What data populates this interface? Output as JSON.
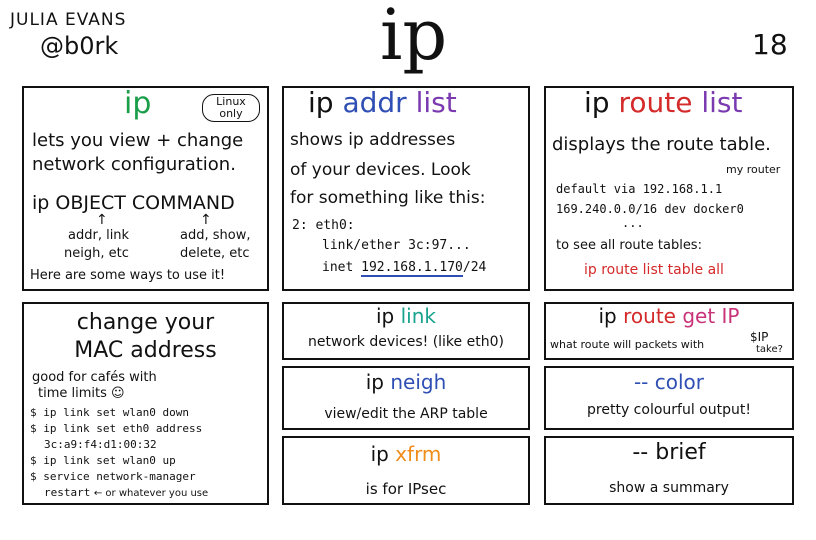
{
  "header": {
    "author_name": "JULIA EVANS",
    "author_handle": "@b0rk",
    "title": "ip",
    "page_number": "18"
  },
  "panels": {
    "ip": {
      "title": "ip",
      "badge": "Linux only",
      "desc1": "lets you view + change",
      "desc2": "network configuration.",
      "syntax": "ip OBJECT COMMAND",
      "obj_examples1": "addr, link",
      "obj_examples2": "neigh, etc",
      "cmd_examples1": "add, show,",
      "cmd_examples2": "delete, etc",
      "footer": "Here are some ways to use it!"
    },
    "addr": {
      "title_ip": "ip",
      "title_obj": "addr",
      "title_cmd": "list",
      "desc1": "shows ip addresses",
      "desc2": "of your devices. Look",
      "desc3": "for something like this:",
      "code1": "2: eth0:",
      "code2": "link/ether 3c:97...",
      "code3_prefix": "inet ",
      "code3_ip": "192.168.1.170",
      "code3_suffix": "/24"
    },
    "route": {
      "title_ip": "ip",
      "title_obj": "route",
      "title_cmd": "list",
      "desc": "displays the route table.",
      "annotation": "my router",
      "code1": "default via 192.168.1.1",
      "code2": "169.240.0.0/16 dev docker0",
      "ellipsis": "...",
      "note": "to see all route tables:",
      "command": "ip route list table all"
    },
    "mac": {
      "title1": "change your",
      "title2": "MAC address",
      "desc1": "good for cafés with",
      "desc2": "time limits",
      "cmd1": "$ ip link set wlan0 down",
      "cmd2": "$ ip link set eth0 address",
      "cmd3": "3c:a9:f4:d1:00:32",
      "cmd4": "$ ip link set wlan0 up",
      "cmd5": "$ service network-manager",
      "cmd6": "restart",
      "cmd6_note": "← or whatever you use"
    },
    "link": {
      "title_ip": "ip",
      "title_obj": "link",
      "desc": "network devices! (like eth0)"
    },
    "neigh": {
      "title_ip": "ip",
      "title_obj": "neigh",
      "desc": "view/edit the ARP table"
    },
    "xfrm": {
      "title_ip": "ip",
      "title_obj": "xfrm",
      "desc": "is for IPsec"
    },
    "routeget": {
      "title_ip": "ip",
      "title_obj": "route",
      "title_cmd": "get IP",
      "desc": "what route will packets with",
      "var": "$IP",
      "take": "take?"
    },
    "color": {
      "title": "-- color",
      "desc": "pretty colourful output!"
    },
    "brief": {
      "title": "-- brief",
      "desc": "show a summary"
    }
  },
  "colors": {
    "green": "#1a9e4a",
    "blue": "#2f4fb5",
    "purple": "#7b3ab0",
    "red": "#d42a2a",
    "teal": "#1aa38e",
    "orange": "#f08c1a",
    "magenta": "#c8337a"
  }
}
